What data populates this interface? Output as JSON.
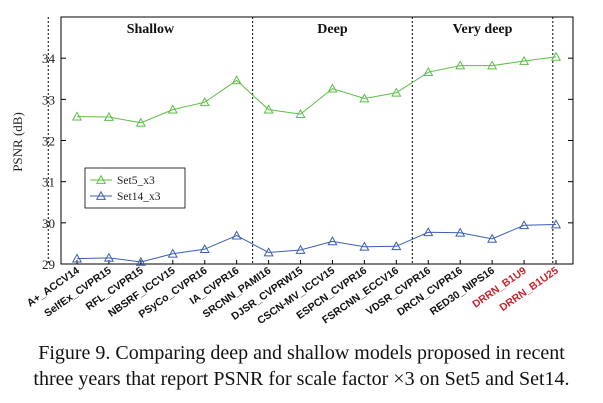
{
  "caption": {
    "line1": "Figure 9. Comparing deep and shallow models proposed in recent",
    "line2": "three years that report PSNR for scale factor ×3 on Set5 and Set14."
  },
  "chart_data": {
    "type": "line",
    "ylabel": "PSNR (dB)",
    "ylim": [
      29,
      35
    ],
    "yticks": [
      29,
      30,
      31,
      32,
      33,
      34
    ],
    "grid": false,
    "legend_position": "left",
    "groups": [
      {
        "label": "Shallow",
        "start": 0,
        "end": 5
      },
      {
        "label": "Deep",
        "start": 6,
        "end": 10
      },
      {
        "label": "Very deep",
        "start": 11,
        "end": 14
      }
    ],
    "categories": [
      "A+_ACCV14",
      "SelfEx_CVPR15",
      "RFL_CVPR15",
      "NBSRF_ICCV15",
      "PSyCo_CVPR16",
      "IA_CVPR16",
      "SRCNN_PAMI16",
      "DJSR_CVPRW15",
      "CSCN-MV_ICCV15",
      "ESPCN_CVPR16",
      "FSRCNN_ECCV16",
      "VDSR_CVPR16",
      "DRCN_CVPR16",
      "RED30_NIPS16",
      "DRRN_B1U9",
      "DRRN_B1U25"
    ],
    "highlight_categories": [
      "DRRN_B1U9",
      "DRRN_B1U25"
    ],
    "series": [
      {
        "name": "Set5_x3",
        "color": "#5bbf45",
        "values": [
          32.58,
          32.57,
          32.43,
          32.75,
          32.93,
          33.46,
          32.75,
          32.64,
          33.26,
          33.02,
          33.16,
          33.66,
          33.82,
          33.82,
          33.93,
          34.03
        ]
      },
      {
        "name": "Set14_x3",
        "color": "#3a5fb5",
        "values": [
          29.13,
          29.15,
          29.05,
          29.25,
          29.36,
          29.69,
          29.28,
          29.34,
          29.55,
          29.42,
          29.43,
          29.77,
          29.76,
          29.61,
          29.94,
          29.96
        ]
      }
    ]
  }
}
